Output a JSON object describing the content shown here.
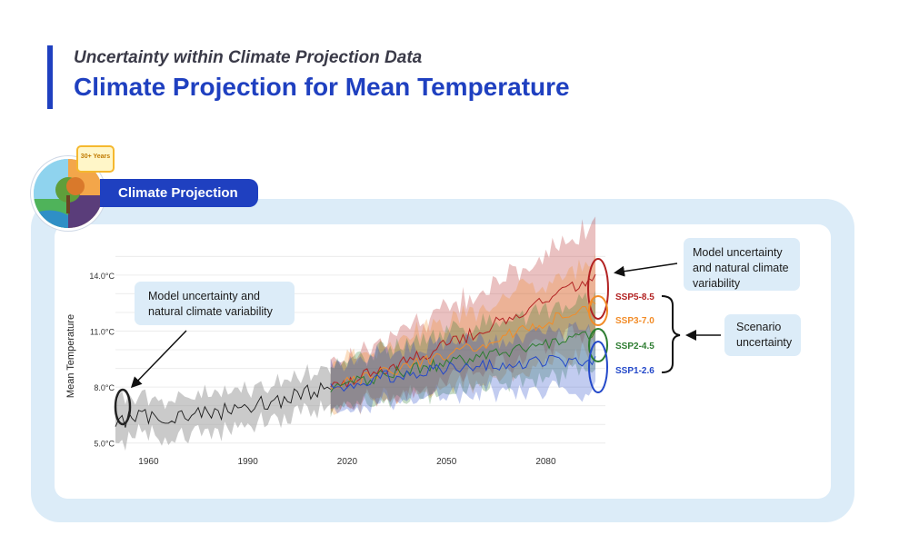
{
  "header": {
    "subtitle": "Uncertainty within Climate Projection Data",
    "title": "Climate Projection for Mean Temperature"
  },
  "section_tag": "Climate Projection",
  "badge_text": "30+ Years",
  "callouts": {
    "left": "Model uncertainty and natural climate variability",
    "right_top": "Model uncertainty and natural climate variability",
    "scenario": "Scenario uncertainty"
  },
  "colors": {
    "brand": "#1f40c0",
    "panel": "#dcecf8",
    "historical": "#1a1a1a",
    "ssp585": "#b22222",
    "ssp370": "#f28c28",
    "ssp245": "#2e7d32",
    "ssp126": "#2348c9"
  },
  "chart_data": {
    "type": "line",
    "ylabel": "Mean Temperature",
    "xlabel": "",
    "title": "",
    "xlim": [
      1950,
      2098
    ],
    "ylim": [
      4.5,
      15.6
    ],
    "xticks": [
      1960,
      1990,
      2020,
      2050,
      2080
    ],
    "xtick_labels": [
      "1960",
      "1990",
      "2020",
      "2050",
      "2080"
    ],
    "yticks": [
      5.0,
      8.0,
      11.0,
      14.0
    ],
    "ytick_labels": [
      "5.0°C",
      "8.0°C",
      "11.0°C",
      "14.0°C"
    ],
    "grid": true,
    "legend": "right",
    "historical": {
      "name": "",
      "x": [
        1950,
        1960,
        1970,
        1980,
        1990,
        2000,
        2010,
        2015
      ],
      "values": [
        6.2,
        6.4,
        6.5,
        6.6,
        7.0,
        7.3,
        7.8,
        8.1
      ],
      "spread": 1.0
    },
    "series": [
      {
        "name": "SSP5-8.5",
        "x": [
          2015,
          2030,
          2045,
          2060,
          2075,
          2090,
          2095
        ],
        "values": [
          8.0,
          8.9,
          9.9,
          11.0,
          12.2,
          13.5,
          13.9
        ],
        "spread": [
          1.2,
          1.5,
          1.9,
          2.2,
          2.5,
          2.8,
          2.9
        ]
      },
      {
        "name": "SSP3-7.0",
        "x": [
          2015,
          2030,
          2045,
          2060,
          2075,
          2090,
          2095
        ],
        "values": [
          8.0,
          8.7,
          9.4,
          10.3,
          11.2,
          12.1,
          12.4
        ],
        "spread": [
          1.2,
          1.4,
          1.7,
          1.9,
          2.1,
          2.3,
          2.4
        ]
      },
      {
        "name": "SSP2-4.5",
        "x": [
          2015,
          2030,
          2045,
          2060,
          2075,
          2090,
          2095
        ],
        "values": [
          8.0,
          8.6,
          9.1,
          9.6,
          10.1,
          10.6,
          10.8
        ],
        "spread": [
          1.2,
          1.4,
          1.6,
          1.7,
          1.8,
          1.9,
          1.9
        ]
      },
      {
        "name": "SSP1-2.6",
        "x": [
          2015,
          2030,
          2045,
          2060,
          2075,
          2090,
          2095
        ],
        "values": [
          8.0,
          8.5,
          8.9,
          9.1,
          9.3,
          9.4,
          9.4
        ],
        "spread": [
          1.2,
          1.3,
          1.4,
          1.5,
          1.5,
          1.6,
          1.6
        ]
      }
    ]
  }
}
